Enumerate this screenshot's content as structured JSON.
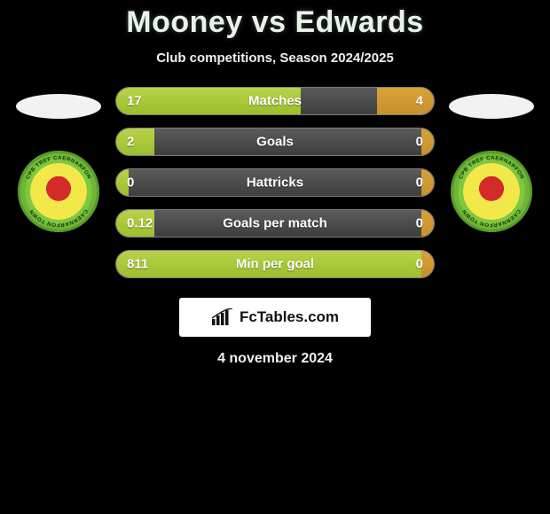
{
  "header": {
    "player1": "Mooney",
    "vs": "vs",
    "player2": "Edwards",
    "subtitle": "Club competitions, Season 2024/2025"
  },
  "colors": {
    "left_bar": "#a9c838",
    "right_bar": "#cf9733",
    "mid_bar": "#4a4a4a",
    "background": "#000000",
    "text": "#ffffff"
  },
  "stats": [
    {
      "label": "Matches",
      "left_value": "17",
      "right_value": "4",
      "left_pct": 58,
      "right_pct": 18
    },
    {
      "label": "Goals",
      "left_value": "2",
      "right_value": "0",
      "left_pct": 12,
      "right_pct": 4
    },
    {
      "label": "Hattricks",
      "left_value": "0",
      "right_value": "0",
      "left_pct": 4,
      "right_pct": 4
    },
    {
      "label": "Goals per match",
      "left_value": "0.12",
      "right_value": "0",
      "left_pct": 12,
      "right_pct": 4
    },
    {
      "label": "Min per goal",
      "left_value": "811",
      "right_value": "0",
      "left_pct": 96,
      "right_pct": 4
    }
  ],
  "branding": {
    "site": "FcTables.com"
  },
  "date": "4 november 2024",
  "badges": {
    "left": {
      "ring_text_top": "CPB TREF CAERNARFON",
      "ring_text_bottom": "CAERNARFON TOWN"
    },
    "right": {
      "ring_text_top": "CPB TREF CAERNARFON",
      "ring_text_bottom": "CAERNARFON TOWN"
    }
  }
}
